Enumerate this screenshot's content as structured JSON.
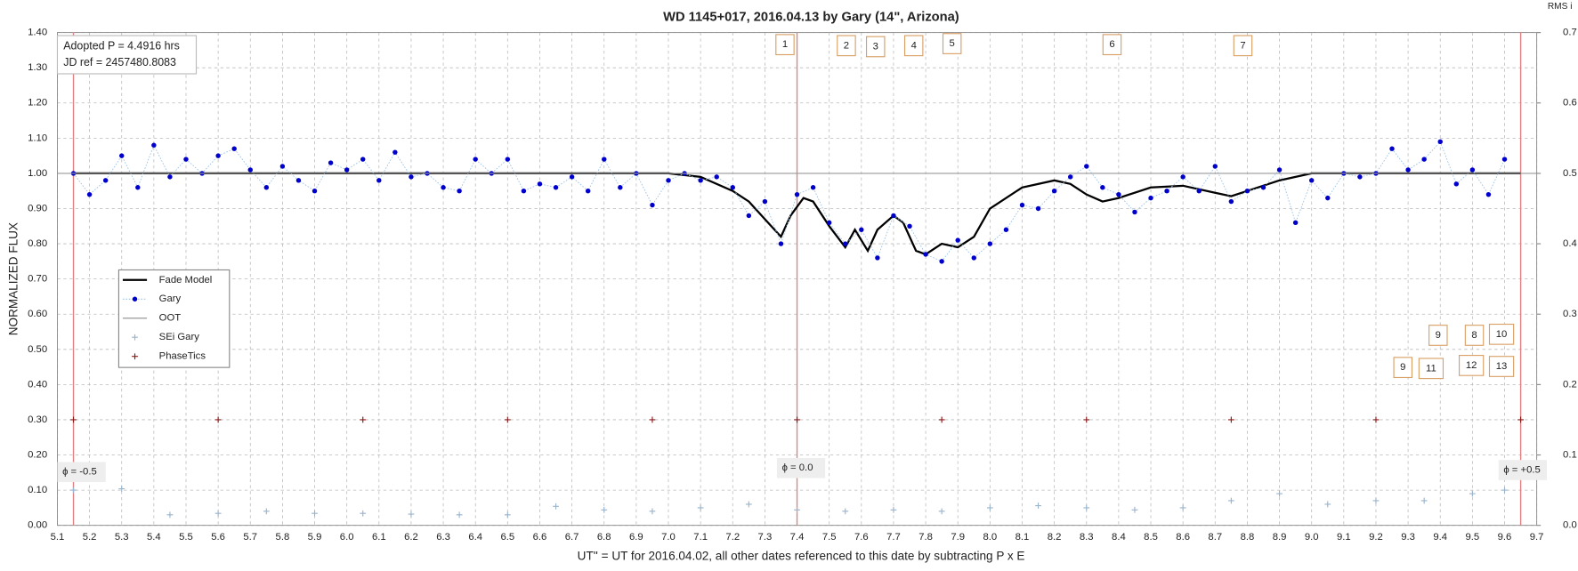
{
  "chart_data": {
    "type": "scatter",
    "title": "WD 1145+017, 2016.04.13 by Gary (14\", Arizona)",
    "xlabel": "UT'' = UT for 2016.04.02, all other dates referenced to this date by subtracting P x E",
    "ylabel": "NORMALIZED FLUX",
    "y2label": "RMS i",
    "info": [
      "Adopted P = 4.4916 hrs",
      "JD ref = 2457480.8083"
    ],
    "box_labels": [
      "1",
      "2",
      "3",
      "4",
      "5",
      "6",
      "7",
      "9",
      "8",
      "10",
      "9",
      "11",
      "12",
      "13"
    ],
    "phase_labels": [
      {
        "x": 5.15,
        "label": "ϕ = -0.5"
      },
      {
        "x": 7.4,
        "label": "ϕ = 0.0"
      },
      {
        "x": 9.65,
        "label": "ϕ = +0.5"
      }
    ],
    "xlim": [
      5.1,
      9.7
    ],
    "xticks": [
      5.1,
      5.2,
      5.3,
      5.4,
      5.5,
      5.6,
      5.7,
      5.8,
      5.9,
      {
        "value": 6,
        "label": "6.0"
      },
      6.1,
      6.2,
      6.3,
      6.4,
      6.5,
      6.6,
      6.7,
      6.8,
      6.9,
      {
        "value": 7,
        "label": "7.0"
      },
      7.1,
      7.2,
      7.3,
      7.4,
      7.5,
      7.6,
      7.7,
      7.8,
      7.9,
      {
        "value": 8,
        "label": "8.0"
      },
      8.1,
      8.2,
      8.3,
      8.4,
      8.5,
      8.6,
      8.7,
      8.8,
      8.9,
      {
        "value": 9,
        "label": "9.0"
      },
      9.1,
      9.2,
      9.3,
      9.4,
      9.5,
      9.6,
      9.7
    ],
    "ylim": [
      0,
      1.4
    ],
    "yticks": [
      {
        "value": 0,
        "label": "0.00"
      },
      {
        "value": 0.1,
        "label": "0.10"
      },
      {
        "value": 0.2,
        "label": "0.20"
      },
      {
        "value": 0.3,
        "label": "0.30"
      },
      {
        "value": 0.4,
        "label": "0.40"
      },
      {
        "value": 0.5,
        "label": "0.50"
      },
      {
        "value": 0.6,
        "label": "0.60"
      },
      {
        "value": 0.7,
        "label": "0.70"
      },
      {
        "value": 0.8,
        "label": "0.80"
      },
      {
        "value": 0.9,
        "label": "0.90"
      },
      {
        "value": 1,
        "label": "1.00"
      },
      {
        "value": 1.1,
        "label": "1.10"
      },
      {
        "value": 1.2,
        "label": "1.20"
      },
      {
        "value": 1.3,
        "label": "1.30"
      },
      {
        "value": 1.4,
        "label": "1.40"
      }
    ],
    "y2lim": [
      0,
      0.7
    ],
    "y2ticks": [
      {
        "value": 0,
        "label": "0.0"
      },
      0.1,
      0.2,
      0.3,
      0.4,
      0.5,
      0.6,
      0.7
    ],
    "grid": true,
    "series": [
      {
        "name": "Fade Model",
        "color": "#000000",
        "style": "line",
        "x": [
          5.15,
          7.0,
          7.1,
          7.2,
          7.25,
          7.3,
          7.35,
          7.38,
          7.42,
          7.45,
          7.5,
          7.55,
          7.58,
          7.62,
          7.65,
          7.7,
          7.73,
          7.77,
          7.8,
          7.85,
          7.9,
          7.95,
          8.0,
          8.1,
          8.2,
          8.25,
          8.3,
          8.35,
          8.4,
          8.5,
          8.6,
          8.7,
          8.75,
          8.8,
          8.9,
          9.0,
          9.65
        ],
        "values": [
          1.0,
          1.0,
          0.99,
          0.95,
          0.92,
          0.87,
          0.82,
          0.88,
          0.93,
          0.92,
          0.85,
          0.79,
          0.84,
          0.78,
          0.84,
          0.88,
          0.86,
          0.78,
          0.77,
          0.8,
          0.79,
          0.82,
          0.9,
          0.96,
          0.98,
          0.97,
          0.94,
          0.92,
          0.93,
          0.96,
          0.965,
          0.945,
          0.935,
          0.95,
          0.98,
          1.0,
          1.0
        ]
      },
      {
        "name": "Gary",
        "color": "#0000cc",
        "style": "dots",
        "x": [
          5.15,
          5.2,
          5.25,
          5.3,
          5.35,
          5.4,
          5.45,
          5.5,
          5.55,
          5.6,
          5.65,
          5.7,
          5.75,
          5.8,
          5.85,
          5.9,
          5.95,
          6.0,
          6.05,
          6.1,
          6.15,
          6.2,
          6.25,
          6.3,
          6.35,
          6.4,
          6.45,
          6.5,
          6.55,
          6.6,
          6.65,
          6.7,
          6.75,
          6.8,
          6.85,
          6.9,
          6.95,
          7.0,
          7.05,
          7.1,
          7.15,
          7.2,
          7.25,
          7.3,
          7.35,
          7.4,
          7.45,
          7.5,
          7.55,
          7.6,
          7.65,
          7.7,
          7.75,
          7.8,
          7.85,
          7.9,
          7.95,
          8.0,
          8.05,
          8.1,
          8.15,
          8.2,
          8.25,
          8.3,
          8.35,
          8.4,
          8.45,
          8.5,
          8.55,
          8.6,
          8.65,
          8.7,
          8.75,
          8.8,
          8.85,
          8.9,
          8.95,
          9.0,
          9.05,
          9.1,
          9.15,
          9.2,
          9.25,
          9.3,
          9.35,
          9.4,
          9.45,
          9.5,
          9.55,
          9.6
        ],
        "values": [
          1.0,
          0.94,
          0.98,
          1.05,
          0.96,
          1.08,
          0.99,
          1.04,
          1.0,
          1.05,
          1.07,
          1.01,
          0.96,
          1.02,
          0.98,
          0.95,
          1.03,
          1.01,
          1.04,
          0.98,
          1.06,
          0.99,
          1.0,
          0.96,
          0.95,
          1.04,
          1.0,
          1.04,
          0.95,
          0.97,
          0.96,
          0.99,
          0.95,
          1.04,
          0.96,
          1.0,
          0.91,
          0.98,
          1.0,
          0.98,
          0.99,
          0.96,
          0.88,
          0.92,
          0.8,
          0.94,
          0.96,
          0.86,
          0.8,
          0.84,
          0.76,
          0.88,
          0.85,
          0.77,
          0.75,
          0.81,
          0.76,
          0.8,
          0.84,
          0.91,
          0.9,
          0.95,
          0.99,
          1.02,
          0.96,
          0.94,
          0.89,
          0.93,
          0.95,
          0.99,
          0.95,
          1.02,
          0.92,
          0.95,
          0.96,
          1.01,
          0.86,
          0.98,
          0.93,
          1.0,
          0.99,
          1.0,
          1.07,
          1.01,
          1.04,
          1.09,
          0.97,
          1.01,
          0.94,
          1.04
        ]
      },
      {
        "name": "OOT",
        "color": "#999999",
        "style": "line",
        "x": [
          5.1,
          9.7
        ],
        "values": [
          1.0,
          1.0
        ]
      },
      {
        "name": "SEi  Gary",
        "color": "#9ab4cc",
        "style": "plus",
        "axis": "y2",
        "x": [
          5.15,
          5.3,
          5.45,
          5.6,
          5.75,
          5.9,
          6.05,
          6.2,
          6.35,
          6.5,
          6.65,
          6.8,
          6.95,
          7.1,
          7.25,
          7.4,
          7.55,
          7.7,
          7.85,
          8.0,
          8.15,
          8.3,
          8.45,
          8.6,
          8.75,
          8.9,
          9.05,
          9.2,
          9.35,
          9.5,
          9.6
        ],
        "values": [
          0.05,
          0.052,
          0.015,
          0.017,
          0.02,
          0.017,
          0.017,
          0.016,
          0.015,
          0.015,
          0.027,
          0.022,
          0.02,
          0.025,
          0.03,
          0.022,
          0.02,
          0.022,
          0.02,
          0.025,
          0.028,
          0.025,
          0.022,
          0.025,
          0.035,
          0.045,
          0.03,
          0.035,
          0.035,
          0.045,
          0.05
        ]
      },
      {
        "name": "PhaseTics",
        "color": "#8b1a1a",
        "style": "plus",
        "x": [
          5.15,
          5.6,
          6.05,
          6.5,
          6.95,
          7.4,
          7.85,
          8.3,
          8.75,
          9.2,
          9.65
        ],
        "values": [
          0.3,
          0.3,
          0.3,
          0.3,
          0.3,
          0.3,
          0.3,
          0.3,
          0.3,
          0.3,
          0.3
        ]
      }
    ]
  }
}
